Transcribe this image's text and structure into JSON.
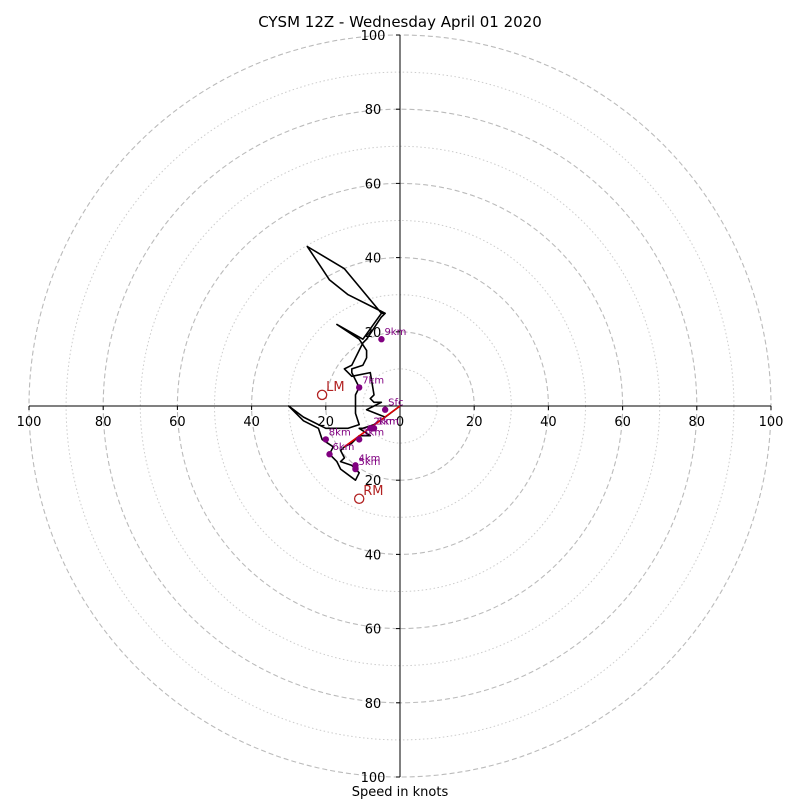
{
  "chart_data": {
    "type": "hodograph",
    "title": "CYSM 12Z - Wednesday April 01 2020",
    "xlabel": "Speed in knots",
    "range": [
      -100,
      100
    ],
    "rings_major": [
      20,
      40,
      60,
      80,
      100
    ],
    "rings_minor": [
      10,
      30,
      50,
      70,
      90
    ],
    "tick_values": [
      100,
      80,
      60,
      40,
      20,
      0,
      20,
      40,
      60,
      80,
      100
    ],
    "axis_tick_values": [
      20,
      40,
      60,
      80,
      100
    ],
    "grid": true,
    "colors": {
      "trace": "#000000",
      "height_points": "#800080",
      "storm_motion": "#b22222",
      "shear_vector": "#e00000",
      "grid": "#bbbbbb"
    },
    "trace": [
      [
        0,
        0
      ],
      [
        -4,
        -3
      ],
      [
        -7,
        -5
      ],
      [
        -10,
        -6
      ],
      [
        -11,
        -6
      ],
      [
        -8,
        -8
      ],
      [
        -11,
        -8
      ],
      [
        -13,
        -10
      ],
      [
        -15,
        -11
      ],
      [
        -16,
        -12
      ],
      [
        -15,
        -14
      ],
      [
        -16,
        -15
      ],
      [
        -13,
        -16
      ],
      [
        -11,
        -18
      ],
      [
        -12,
        -20
      ],
      [
        -16,
        -17
      ],
      [
        -17,
        -15
      ],
      [
        -19,
        -13
      ],
      [
        -18,
        -11
      ],
      [
        -21,
        -9
      ],
      [
        -22,
        -6
      ],
      [
        -26,
        -4
      ],
      [
        -30,
        0
      ],
      [
        -26,
        -3
      ],
      [
        -20,
        -6
      ],
      [
        -14,
        -6
      ],
      [
        -11,
        -5
      ],
      [
        -12,
        -2
      ],
      [
        -12,
        3
      ],
      [
        -11,
        5
      ],
      [
        -13,
        9
      ],
      [
        -13,
        10
      ],
      [
        -10,
        11
      ],
      [
        -9,
        13
      ],
      [
        -9,
        15
      ],
      [
        -11,
        18
      ],
      [
        -17,
        22
      ],
      [
        -17,
        22
      ],
      [
        -10,
        18
      ],
      [
        -5,
        25
      ],
      [
        -4,
        25
      ],
      [
        -14,
        30
      ],
      [
        -19,
        34
      ],
      [
        -21,
        37
      ],
      [
        -25,
        43
      ],
      [
        -15,
        37
      ],
      [
        -10,
        31
      ],
      [
        -5,
        25
      ],
      [
        -4,
        25
      ],
      [
        -5,
        24
      ],
      [
        -9,
        18
      ],
      [
        -10,
        17
      ],
      [
        -10,
        17
      ],
      [
        -13,
        11
      ],
      [
        -15,
        10
      ],
      [
        -13,
        8
      ],
      [
        -8,
        9
      ],
      [
        -8,
        9
      ],
      [
        -7,
        3
      ],
      [
        -8,
        2
      ],
      [
        -7,
        1
      ],
      [
        -5,
        1
      ],
      [
        -7,
        0
      ],
      [
        -9,
        -1
      ],
      [
        -4,
        -3
      ]
    ],
    "height_labels": [
      {
        "label": "Sfc",
        "u": -4,
        "v": -1
      },
      {
        "label": "1km",
        "u": -7,
        "v": -6
      },
      {
        "label": "2km",
        "u": -8,
        "v": -6
      },
      {
        "label": "3km",
        "u": -11,
        "v": -9
      },
      {
        "label": "4km",
        "u": -12,
        "v": -16
      },
      {
        "label": "5km",
        "u": -12,
        "v": -17
      },
      {
        "label": "6km",
        "u": -19,
        "v": -13
      },
      {
        "label": "7km",
        "u": -11,
        "v": 5
      },
      {
        "label": "8km",
        "u": -20,
        "v": -9
      },
      {
        "label": "9km",
        "u": -5,
        "v": 18
      }
    ],
    "storm_motion": [
      {
        "label": "LM",
        "u": -21,
        "v": 3
      },
      {
        "label": "RM",
        "u": -11,
        "v": -25
      }
    ],
    "shear_vector": {
      "from": [
        0,
        0
      ],
      "to": [
        -15,
        -11
      ]
    }
  }
}
